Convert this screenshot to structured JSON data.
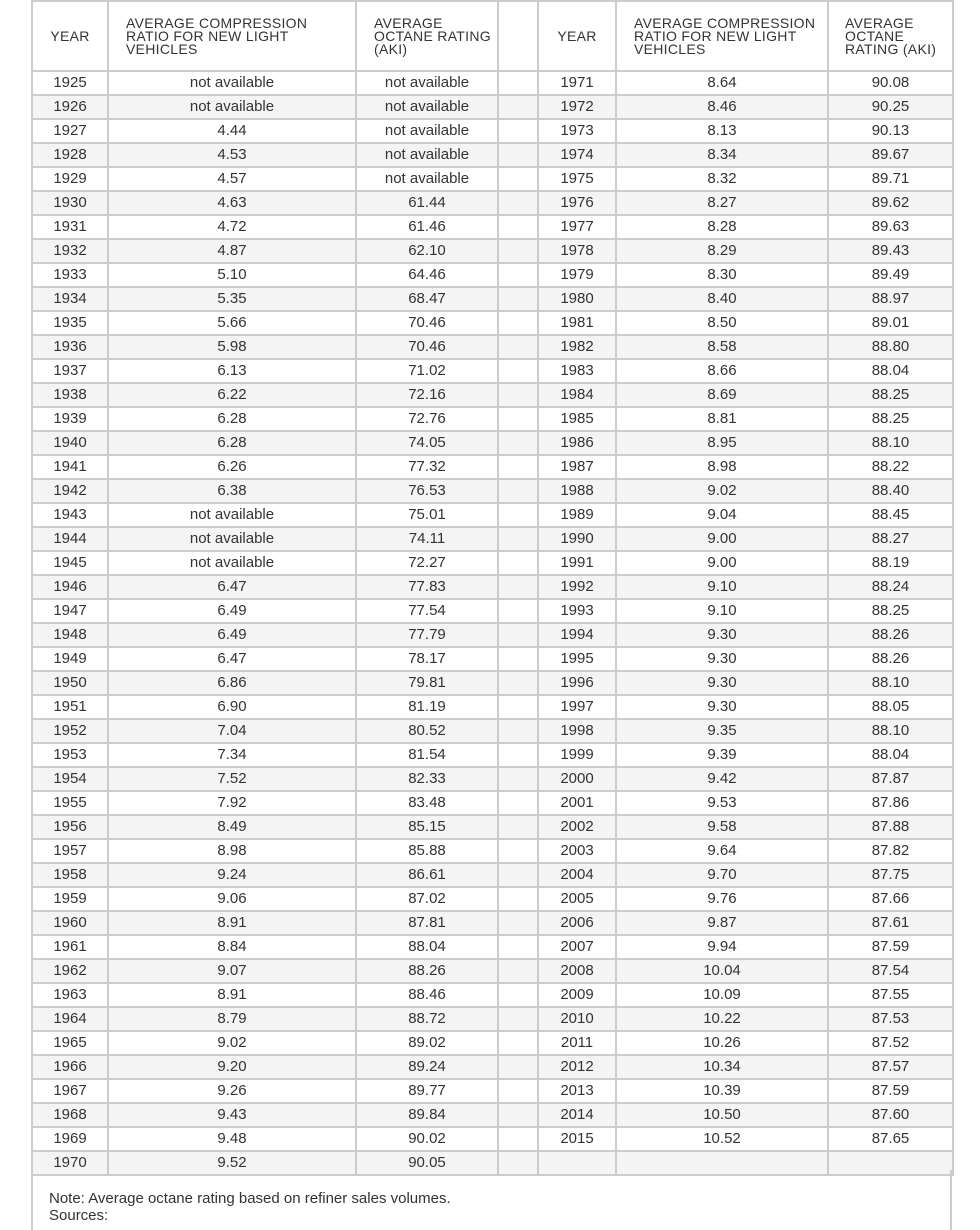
{
  "headers": {
    "year": "YEAR",
    "compression": "AVERAGE COMPRESSION RATIO FOR NEW LIGHT VEHICLES",
    "octane": "AVERAGE OCTANE RATING (AKI)",
    "year2": "YEAR",
    "compression2": "AVERAGE COMPRESSION RATIO FOR NEW LIGHT VEHICLES",
    "octane2": "AVERAGE OCTANE RATING (AKI)"
  },
  "rows": [
    [
      "1925",
      "not available",
      "not available",
      "1971",
      "8.64",
      "90.08"
    ],
    [
      "1926",
      "not available",
      "not available",
      "1972",
      "8.46",
      "90.25"
    ],
    [
      "1927",
      "4.44",
      "not available",
      "1973",
      "8.13",
      "90.13"
    ],
    [
      "1928",
      "4.53",
      "not available",
      "1974",
      "8.34",
      "89.67"
    ],
    [
      "1929",
      "4.57",
      "not available",
      "1975",
      "8.32",
      "89.71"
    ],
    [
      "1930",
      "4.63",
      "61.44",
      "1976",
      "8.27",
      "89.62"
    ],
    [
      "1931",
      "4.72",
      "61.46",
      "1977",
      "8.28",
      "89.63"
    ],
    [
      "1932",
      "4.87",
      "62.10",
      "1978",
      "8.29",
      "89.43"
    ],
    [
      "1933",
      "5.10",
      "64.46",
      "1979",
      "8.30",
      "89.49"
    ],
    [
      "1934",
      "5.35",
      "68.47",
      "1980",
      "8.40",
      "88.97"
    ],
    [
      "1935",
      "5.66",
      "70.46",
      "1981",
      "8.50",
      "89.01"
    ],
    [
      "1936",
      "5.98",
      "70.46",
      "1982",
      "8.58",
      "88.80"
    ],
    [
      "1937",
      "6.13",
      "71.02",
      "1983",
      "8.66",
      "88.04"
    ],
    [
      "1938",
      "6.22",
      "72.16",
      "1984",
      "8.69",
      "88.25"
    ],
    [
      "1939",
      "6.28",
      "72.76",
      "1985",
      "8.81",
      "88.25"
    ],
    [
      "1940",
      "6.28",
      "74.05",
      "1986",
      "8.95",
      "88.10"
    ],
    [
      "1941",
      "6.26",
      "77.32",
      "1987",
      "8.98",
      "88.22"
    ],
    [
      "1942",
      "6.38",
      "76.53",
      "1988",
      "9.02",
      "88.40"
    ],
    [
      "1943",
      "not available",
      "75.01",
      "1989",
      "9.04",
      "88.45"
    ],
    [
      "1944",
      "not available",
      "74.11",
      "1990",
      "9.00",
      "88.27"
    ],
    [
      "1945",
      "not available",
      "72.27",
      "1991",
      "9.00",
      "88.19"
    ],
    [
      "1946",
      "6.47",
      "77.83",
      "1992",
      "9.10",
      "88.24"
    ],
    [
      "1947",
      "6.49",
      "77.54",
      "1993",
      "9.10",
      "88.25"
    ],
    [
      "1948",
      "6.49",
      "77.79",
      "1994",
      "9.30",
      "88.26"
    ],
    [
      "1949",
      "6.47",
      "78.17",
      "1995",
      "9.30",
      "88.26"
    ],
    [
      "1950",
      "6.86",
      "79.81",
      "1996",
      "9.30",
      "88.10"
    ],
    [
      "1951",
      "6.90",
      "81.19",
      "1997",
      "9.30",
      "88.05"
    ],
    [
      "1952",
      "7.04",
      "80.52",
      "1998",
      "9.35",
      "88.10"
    ],
    [
      "1953",
      "7.34",
      "81.54",
      "1999",
      "9.39",
      "88.04"
    ],
    [
      "1954",
      "7.52",
      "82.33",
      "2000",
      "9.42",
      "87.87"
    ],
    [
      "1955",
      "7.92",
      "83.48",
      "2001",
      "9.53",
      "87.86"
    ],
    [
      "1956",
      "8.49",
      "85.15",
      "2002",
      "9.58",
      "87.88"
    ],
    [
      "1957",
      "8.98",
      "85.88",
      "2003",
      "9.64",
      "87.82"
    ],
    [
      "1958",
      "9.24",
      "86.61",
      "2004",
      "9.70",
      "87.75"
    ],
    [
      "1959",
      "9.06",
      "87.02",
      "2005",
      "9.76",
      "87.66"
    ],
    [
      "1960",
      "8.91",
      "87.81",
      "2006",
      "9.87",
      "87.61"
    ],
    [
      "1961",
      "8.84",
      "88.04",
      "2007",
      "9.94",
      "87.59"
    ],
    [
      "1962",
      "9.07",
      "88.26",
      "2008",
      "10.04",
      "87.54"
    ],
    [
      "1963",
      "8.91",
      "88.46",
      "2009",
      "10.09",
      "87.55"
    ],
    [
      "1964",
      "8.79",
      "88.72",
      "2010",
      "10.22",
      "87.53"
    ],
    [
      "1965",
      "9.02",
      "89.02",
      "2011",
      "10.26",
      "87.52"
    ],
    [
      "1966",
      "9.20",
      "89.24",
      "2012",
      "10.34",
      "87.57"
    ],
    [
      "1967",
      "9.26",
      "89.77",
      "2013",
      "10.39",
      "87.59"
    ],
    [
      "1968",
      "9.43",
      "89.84",
      "2014",
      "10.50",
      "87.60"
    ],
    [
      "1969",
      "9.48",
      "90.02",
      "2015",
      "10.52",
      "87.65"
    ],
    [
      "1970",
      "9.52",
      "90.05",
      "",
      "",
      ""
    ]
  ],
  "note": "Note: Average octane rating based on refiner sales volumes.",
  "sources_label": "Sources:",
  "colors": {
    "border": "#cccccc",
    "stripe": "#f4f4f4",
    "text": "#333333"
  }
}
